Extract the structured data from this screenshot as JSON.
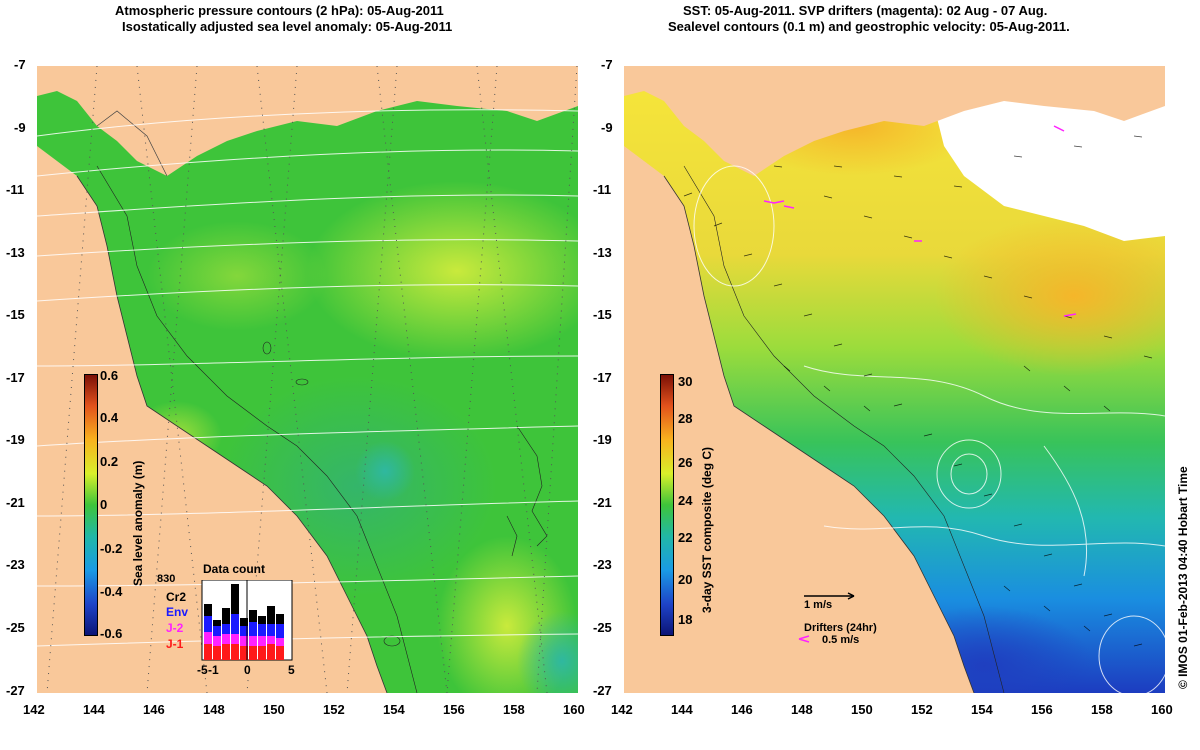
{
  "left_panel": {
    "title_line1": "Atmospheric pressure contours (2 hPa): 05-Aug-2011",
    "title_line2": "Isostatically adjusted sea level anomaly: 05-Aug-2011",
    "colorbar_label": "Sea level anomaly (m)",
    "colorbar_ticks": [
      "0.6",
      "0.4",
      "0.2",
      "0",
      "-0.2",
      "-0.4",
      "-0.6"
    ],
    "inset": {
      "title": "Data count",
      "max_label": "830",
      "series": [
        "Cr2",
        "Env",
        "J-2",
        "J-1"
      ],
      "series_colors": [
        "#000000",
        "#1a1aff",
        "#ff22ff",
        "#ff1a1a"
      ],
      "x_ticks": [
        "-5",
        "0",
        "5"
      ],
      "extra_tick": "-1"
    }
  },
  "right_panel": {
    "title_line1": "SST: 05-Aug-2011. SVP drifters (magenta): 02 Aug - 07 Aug.",
    "title_line2": "Sealevel contours (0.1 m) and geostrophic velocity: 05-Aug-2011.",
    "colorbar_label": "3-day SST composite (deg C)",
    "colorbar_ticks": [
      "30",
      "28",
      "26",
      "24",
      "22",
      "20",
      "18"
    ],
    "velocity_scale_label": "1 m/s",
    "drifter_title": "Drifters (24hr)",
    "drifter_scale_label": "0.5 m/s"
  },
  "axes": {
    "lat_ticks": [
      "-7",
      "-9",
      "-11",
      "-13",
      "-15",
      "-17",
      "-19",
      "-21",
      "-23",
      "-25",
      "-27"
    ],
    "lon_ticks": [
      "142",
      "144",
      "146",
      "148",
      "150",
      "152",
      "154",
      "156",
      "158",
      "160"
    ]
  },
  "credit": "© IMOS 01-Feb-2013 04:40 Hobart Time",
  "colors": {
    "land": "#f9c89a",
    "ocean_green": "#3ec43a",
    "ocean_lime": "#a4e640"
  }
}
